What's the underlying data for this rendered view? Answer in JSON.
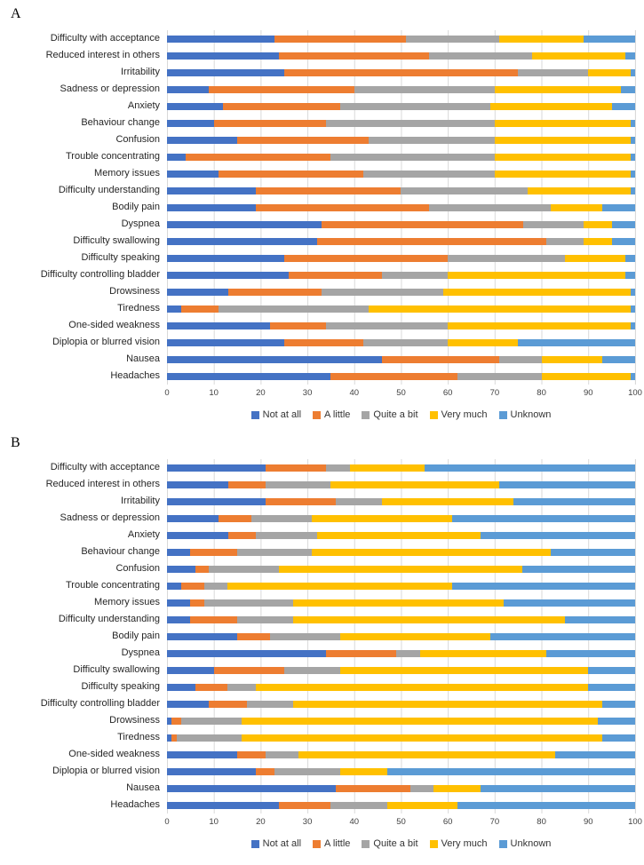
{
  "panels": [
    {
      "letter": "A"
    },
    {
      "letter": "B"
    }
  ],
  "legend": {
    "items": [
      {
        "label": "Not at all",
        "color": "#4472C4"
      },
      {
        "label": "A little",
        "color": "#ED7D31"
      },
      {
        "label": "Quite a bit",
        "color": "#A5A5A5"
      },
      {
        "label": "Very much",
        "color": "#FFC000"
      },
      {
        "label": "Unknown",
        "color": "#5B9BD5"
      }
    ]
  },
  "axis": {
    "ticks": [
      0,
      10,
      20,
      30,
      40,
      50,
      60,
      70,
      80,
      90,
      100
    ],
    "max": 100
  },
  "chart_data": [
    {
      "type": "bar",
      "stacked": true,
      "orientation": "horizontal",
      "panel": "A",
      "xlim": [
        0,
        100
      ],
      "xticks": [
        0,
        10,
        20,
        30,
        40,
        50,
        60,
        70,
        80,
        90,
        100
      ],
      "grid": true,
      "legend_position": "bottom",
      "categories": [
        "Difficulty with acceptance",
        "Reduced interest in others",
        "Irritability",
        "Sadness or depression",
        "Anxiety",
        "Behaviour change",
        "Confusion",
        "Trouble concentrating",
        "Memory issues",
        "Difficulty understanding",
        "Bodily pain",
        "Dyspnea",
        "Difficulty swallowing",
        "Difficulty speaking",
        "Difficulty controlling bladder",
        "Drowsiness",
        "Tiredness",
        "One-sided weakness",
        "Diplopia or blurred vision",
        "Nausea",
        "Headaches"
      ],
      "series": [
        {
          "name": "Not at all",
          "color": "#4472C4",
          "values": [
            23,
            24,
            25,
            9,
            12,
            10,
            15,
            4,
            11,
            19,
            19,
            33,
            32,
            25,
            26,
            13,
            3,
            22,
            25,
            46,
            35
          ]
        },
        {
          "name": "A little",
          "color": "#ED7D31",
          "values": [
            28,
            32,
            50,
            31,
            25,
            24,
            28,
            31,
            31,
            31,
            37,
            43,
            49,
            35,
            20,
            20,
            8,
            12,
            17,
            25,
            27
          ]
        },
        {
          "name": "Quite a bit",
          "color": "#A5A5A5",
          "values": [
            20,
            22,
            15,
            30,
            32,
            36,
            27,
            35,
            28,
            27,
            26,
            13,
            8,
            25,
            14,
            26,
            32,
            26,
            18,
            9,
            18
          ]
        },
        {
          "name": "Very much",
          "color": "#FFC000",
          "values": [
            18,
            20,
            9,
            27,
            26,
            29,
            29,
            29,
            29,
            22,
            11,
            6,
            6,
            13,
            38,
            40,
            56,
            39,
            15,
            13,
            19
          ]
        },
        {
          "name": "Unknown",
          "color": "#5B9BD5",
          "values": [
            11,
            2,
            1,
            3,
            5,
            1,
            1,
            1,
            1,
            1,
            7,
            5,
            5,
            2,
            2,
            1,
            1,
            1,
            25,
            7,
            1
          ]
        }
      ]
    },
    {
      "type": "bar",
      "stacked": true,
      "orientation": "horizontal",
      "panel": "B",
      "xlim": [
        0,
        100
      ],
      "xticks": [
        0,
        10,
        20,
        30,
        40,
        50,
        60,
        70,
        80,
        90,
        100
      ],
      "grid": true,
      "legend_position": "bottom",
      "categories": [
        "Difficulty with acceptance",
        "Reduced interest in others",
        "Irritability",
        "Sadness or depression",
        "Anxiety",
        "Behaviour change",
        "Confusion",
        "Trouble concentrating",
        "Memory issues",
        "Difficulty understanding",
        "Bodily pain",
        "Dyspnea",
        "Difficulty swallowing",
        "Difficulty speaking",
        "Difficulty controlling bladder",
        "Drowsiness",
        "Tiredness",
        "One-sided weakness",
        "Diplopia or blurred vision",
        "Nausea",
        "Headaches"
      ],
      "series": [
        {
          "name": "Not at all",
          "color": "#4472C4",
          "values": [
            21,
            13,
            21,
            11,
            13,
            5,
            6,
            3,
            5,
            5,
            15,
            34,
            10,
            6,
            9,
            1,
            1,
            15,
            19,
            36,
            24
          ]
        },
        {
          "name": "A little",
          "color": "#ED7D31",
          "values": [
            13,
            8,
            15,
            7,
            6,
            10,
            3,
            5,
            3,
            10,
            7,
            15,
            15,
            7,
            8,
            2,
            1,
            6,
            4,
            16,
            11
          ]
        },
        {
          "name": "Quite a bit",
          "color": "#A5A5A5",
          "values": [
            5,
            14,
            10,
            13,
            13,
            16,
            15,
            5,
            19,
            12,
            15,
            5,
            12,
            6,
            10,
            13,
            14,
            7,
            14,
            5,
            12
          ]
        },
        {
          "name": "Very much",
          "color": "#FFC000",
          "values": [
            16,
            36,
            28,
            30,
            35,
            51,
            52,
            48,
            45,
            58,
            32,
            27,
            53,
            71,
            66,
            76,
            77,
            55,
            10,
            10,
            15
          ]
        },
        {
          "name": "Unknown",
          "color": "#5B9BD5",
          "values": [
            45,
            29,
            26,
            39,
            33,
            18,
            24,
            39,
            28,
            15,
            31,
            19,
            10,
            10,
            7,
            8,
            7,
            17,
            53,
            33,
            38
          ]
        }
      ]
    }
  ]
}
